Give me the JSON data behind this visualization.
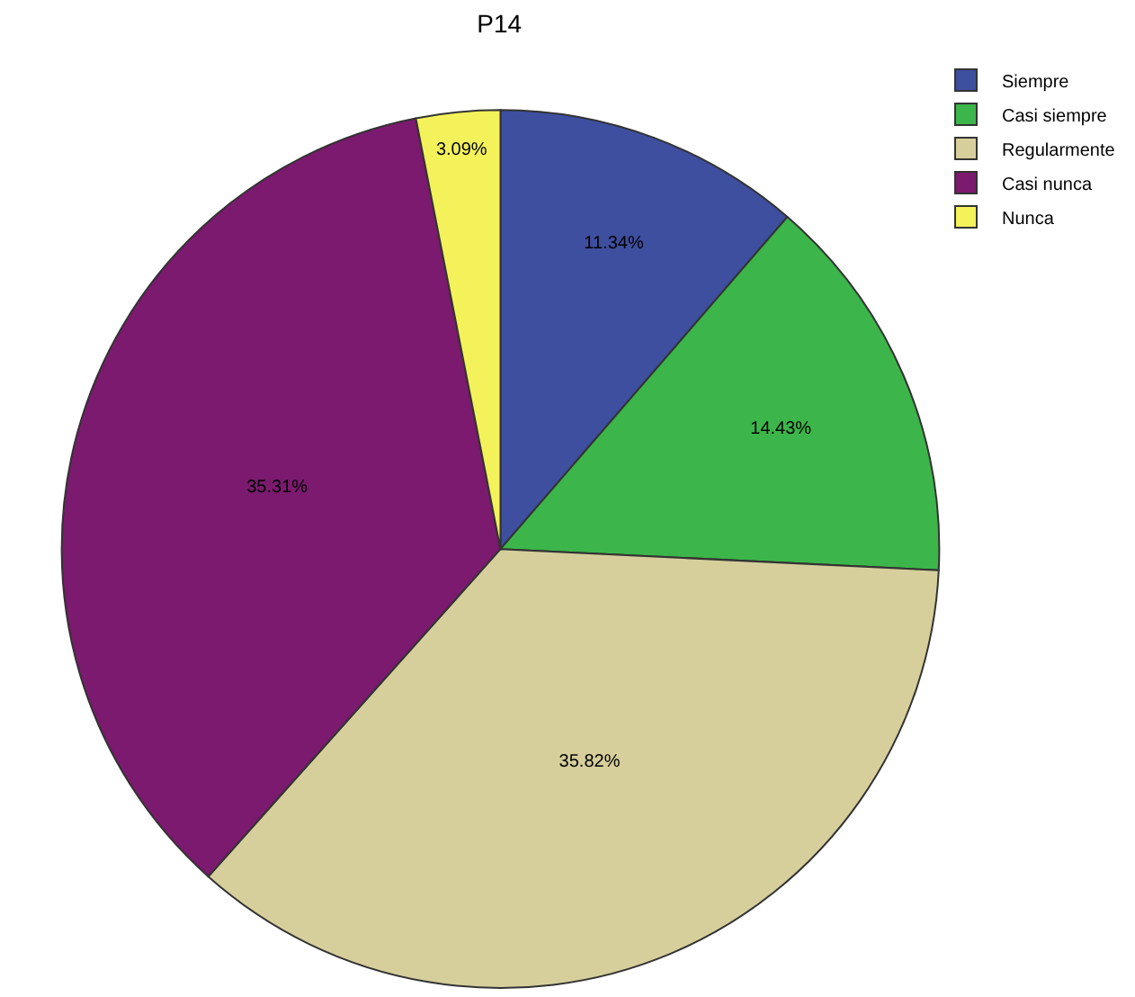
{
  "chart_data": {
    "type": "pie",
    "title": "P14",
    "categories": [
      "Siempre",
      "Casi siempre",
      "Regularmente",
      "Casi nunca",
      "Nunca"
    ],
    "values": [
      11.34,
      14.43,
      35.82,
      35.31,
      3.09
    ],
    "colors": [
      "#3e4fa0",
      "#3cb54a",
      "#d6cf9c",
      "#7b1a6e",
      "#f4f25a"
    ],
    "value_labels": [
      "11.34%",
      "14.43%",
      "35.82%",
      "35.31%",
      "3.09%"
    ],
    "legend": "top right"
  }
}
